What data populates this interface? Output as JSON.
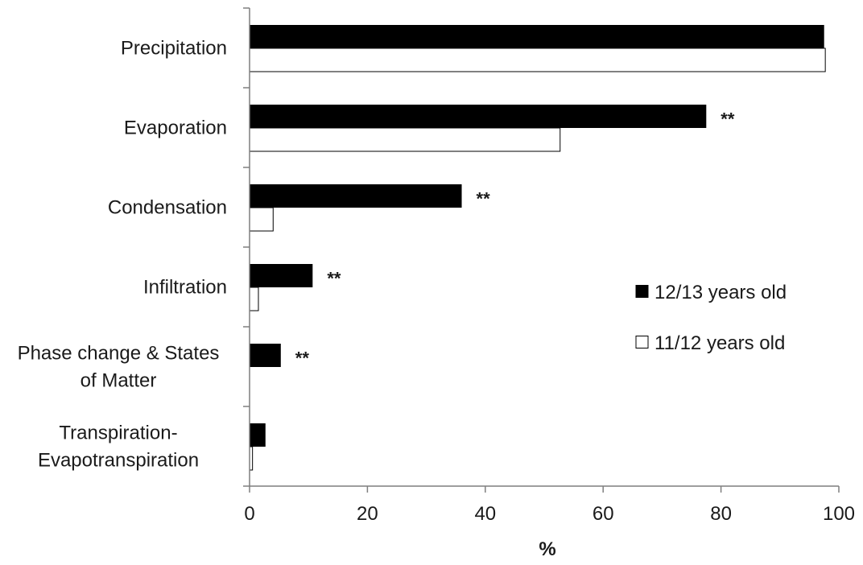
{
  "chart_data": {
    "type": "bar",
    "orientation": "horizontal",
    "categories": [
      [
        "Precipitation"
      ],
      [
        "Evaporation"
      ],
      [
        "Condensation"
      ],
      [
        "Infiltration"
      ],
      [
        "Phase change & States",
        "of Matter"
      ],
      [
        "Transpiration-",
        "Evapotranspiration"
      ]
    ],
    "series": [
      {
        "name": "12/13 years old",
        "fill": "#000000",
        "values": [
          97.5,
          77.5,
          36,
          10.7,
          5.3,
          2.7
        ]
      },
      {
        "name": "11/12 years old",
        "fill": "#ffffff",
        "values": [
          97.7,
          52.7,
          4,
          1.5,
          0,
          0.5
        ]
      }
    ],
    "annotations": [
      "",
      "**",
      "**",
      "**",
      "**",
      ""
    ],
    "xlabel": "%",
    "ylabel": "",
    "title": "",
    "xlim": [
      0,
      100
    ],
    "xticks": [
      0,
      20,
      40,
      60,
      80,
      100
    ],
    "grid": false,
    "legend_position": "right-middle"
  }
}
